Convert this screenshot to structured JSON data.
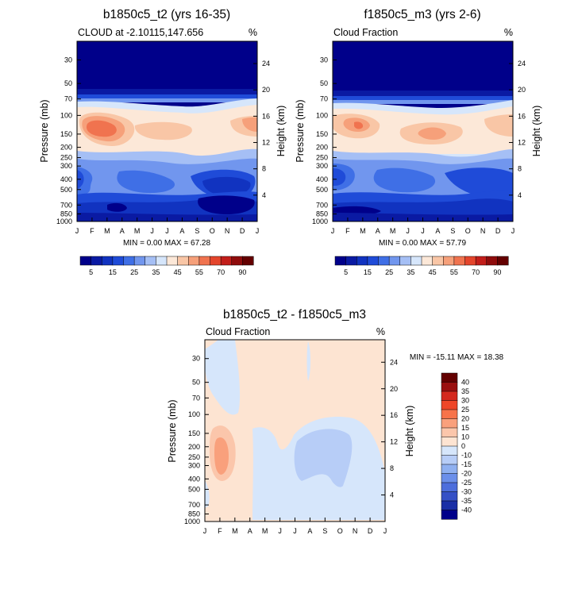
{
  "panels": [
    {
      "title": "b1850c5_t2 (yrs 16-35)",
      "left_label": "CLOUD at -2.10115,147.656",
      "units": "%",
      "ylabel": "Pressure (mb)",
      "ylabel_right": "Height (km)",
      "minmax": "MIN =   0.00 MAX =  67.28"
    },
    {
      "title": "f1850c5_m3 (yrs 2-6)",
      "left_label": "Cloud Fraction",
      "units": "%",
      "ylabel": "Pressure (mb)",
      "ylabel_right": "Height (km)",
      "minmax": "MIN =   0.00 MAX =  57.79"
    },
    {
      "title": "b1850c5_t2 - f1850c5_m3",
      "left_label": "Cloud Fraction",
      "units": "%",
      "ylabel": "Pressure (mb)",
      "ylabel_right": "Height (km)",
      "minmax": "MIN = -15.11 MAX =  18.38"
    }
  ],
  "chart_data": [
    {
      "type": "heatmap",
      "title": "b1850c5_t2 (yrs 16-35)",
      "subtitle": "CLOUD at -2.10115,147.656",
      "units": "%",
      "xlabel": "",
      "ylabel": "Pressure (mb)",
      "ylabel_right": "Height (km)",
      "x_ticks": [
        "J",
        "F",
        "M",
        "A",
        "M",
        "J",
        "J",
        "A",
        "S",
        "O",
        "N",
        "D",
        "J"
      ],
      "y_ticks": [
        "30",
        "50",
        "70",
        "100",
        "150",
        "200",
        "250",
        "300",
        "400",
        "500",
        "700",
        "850",
        "1000"
      ],
      "y2_ticks": [
        "24",
        "20",
        "16",
        "12",
        "8",
        "4"
      ],
      "min": 0.0,
      "max": 67.28,
      "colorbar_labels": [
        "5",
        "15",
        "25",
        "35",
        "45",
        "55",
        "70",
        "90"
      ],
      "colorbar_orientation": "horizontal"
    },
    {
      "type": "heatmap",
      "title": "f1850c5_m3 (yrs 2-6)",
      "subtitle": "Cloud Fraction",
      "units": "%",
      "xlabel": "",
      "ylabel": "Pressure (mb)",
      "ylabel_right": "Height (km)",
      "x_ticks": [
        "J",
        "F",
        "M",
        "A",
        "M",
        "J",
        "J",
        "A",
        "S",
        "O",
        "N",
        "D",
        "J"
      ],
      "y_ticks": [
        "30",
        "50",
        "70",
        "100",
        "150",
        "200",
        "250",
        "300",
        "400",
        "500",
        "700",
        "850",
        "1000"
      ],
      "y2_ticks": [
        "24",
        "20",
        "16",
        "12",
        "8",
        "4"
      ],
      "min": 0.0,
      "max": 57.79,
      "colorbar_labels": [
        "5",
        "15",
        "25",
        "35",
        "45",
        "55",
        "70",
        "90"
      ],
      "colorbar_orientation": "horizontal"
    },
    {
      "type": "heatmap",
      "title": "b1850c5_t2 - f1850c5_m3",
      "subtitle": "Cloud Fraction",
      "units": "%",
      "xlabel": "",
      "ylabel": "Pressure (mb)",
      "ylabel_right": "Height (km)",
      "x_ticks": [
        "J",
        "F",
        "M",
        "A",
        "M",
        "J",
        "J",
        "A",
        "S",
        "O",
        "N",
        "D",
        "J"
      ],
      "y_ticks": [
        "30",
        "50",
        "70",
        "100",
        "150",
        "200",
        "250",
        "300",
        "400",
        "500",
        "700",
        "850",
        "1000"
      ],
      "y2_ticks": [
        "24",
        "20",
        "16",
        "12",
        "8",
        "4"
      ],
      "min": -15.11,
      "max": 18.38,
      "colorbar_labels": [
        "40",
        "35",
        "30",
        "25",
        "20",
        "15",
        "10",
        "0",
        "-10",
        "-15",
        "-20",
        "-25",
        "-30",
        "-35",
        "-40"
      ],
      "colorbar_orientation": "vertical"
    }
  ],
  "colorbars": {
    "abs_colors": [
      "#00008a",
      "#0a1aa3",
      "#1133c0",
      "#1f4bd8",
      "#3f6fe6",
      "#7196ee",
      "#a5bff5",
      "#d6e6fb",
      "#fce8d8",
      "#f9c6a6",
      "#f6a07a",
      "#f0734f",
      "#e4452c",
      "#c21e1a",
      "#8f0c0c",
      "#640000"
    ],
    "diff_colors": [
      "#640000",
      "#9a0f0f",
      "#d4281e",
      "#ee4628",
      "#f7734a",
      "#f9a07c",
      "#fbc6ab",
      "#fde4d2",
      "#d6e6fb",
      "#b7cdf7",
      "#8fb0f0",
      "#6b8fea",
      "#4d6edc",
      "#3550c6",
      "#1a2fa6",
      "#00008a"
    ]
  }
}
